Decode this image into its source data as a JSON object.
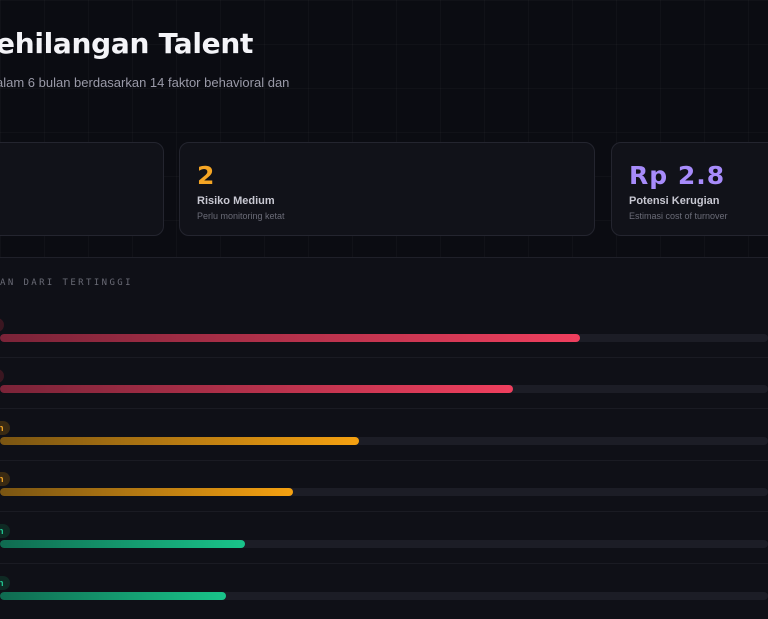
{
  "header": {
    "title": "ehilangan Talent",
    "subtitle": "alam 6 bulan berdasarkan 14 faktor behavioral dan"
  },
  "stats": [
    {
      "value": "",
      "label": "",
      "sub": "",
      "color": "#f4f4f8"
    },
    {
      "value": "2",
      "label": "Risiko Medium",
      "sub": "Perlu monitoring ketat",
      "color": "#f5a524"
    },
    {
      "value": "Rp 2.8",
      "label": "Potensi Kerugian",
      "sub": "Estimasi cost of turnover",
      "color": "#a78bfa"
    }
  ],
  "ranking": {
    "heading": "AN DARI TERTINGGI",
    "rows": [
      {
        "badge": "",
        "level": "high",
        "progress": 0.755
      },
      {
        "badge": "",
        "level": "high",
        "progress": 0.668
      },
      {
        "badge": "n",
        "level": "medium",
        "progress": 0.468
      },
      {
        "badge": "n",
        "level": "medium",
        "progress": 0.381
      },
      {
        "badge": "n",
        "level": "low",
        "progress": 0.319
      },
      {
        "badge": "n",
        "level": "low",
        "progress": 0.294
      }
    ]
  },
  "colors": {
    "high": {
      "from": "#7a2338",
      "to": "#ef3f5e",
      "badge_bg": "#3a1620",
      "badge_fg": "#f06b85"
    },
    "medium": {
      "from": "#7a5512",
      "to": "#f5a111",
      "badge_bg": "#3a2a12",
      "badge_fg": "#f5a524"
    },
    "low": {
      "from": "#0f6a50",
      "to": "#19c48a",
      "badge_bg": "#0f2a24",
      "badge_fg": "#22c993"
    }
  }
}
